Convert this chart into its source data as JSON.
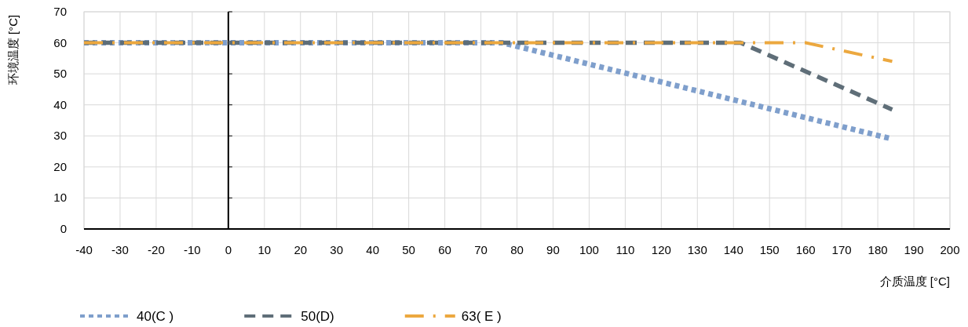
{
  "chart_data": {
    "type": "line",
    "xlabel": "介质温度 [°C]",
    "ylabel": "环境温度 [°C]",
    "xlim": [
      -40,
      200
    ],
    "xticks": [
      -40,
      -30,
      -20,
      -10,
      0,
      10,
      20,
      30,
      40,
      50,
      60,
      70,
      80,
      90,
      100,
      110,
      120,
      130,
      140,
      150,
      160,
      170,
      180,
      190,
      200
    ],
    "ylim": [
      0,
      70
    ],
    "yticks": [
      0,
      10,
      20,
      30,
      40,
      50,
      60,
      70
    ],
    "grid": true,
    "legend": "bottom left",
    "marker": "none",
    "series": [
      {
        "name": "40(C )",
        "color": "#7f9fcc",
        "line_style": "dotted",
        "x": [
          -40,
          76,
          184
        ],
        "values": [
          60,
          60,
          29
        ]
      },
      {
        "name": "50(D)",
        "color": "#5f6e78",
        "line_style": "dashed",
        "x": [
          -40,
          142,
          184
        ],
        "values": [
          60,
          60,
          38.5
        ]
      },
      {
        "name": "63( E )",
        "color": "#eca83f",
        "line_style": "dashdot",
        "x": [
          -40,
          160,
          184
        ],
        "values": [
          60,
          60,
          54
        ]
      }
    ]
  }
}
